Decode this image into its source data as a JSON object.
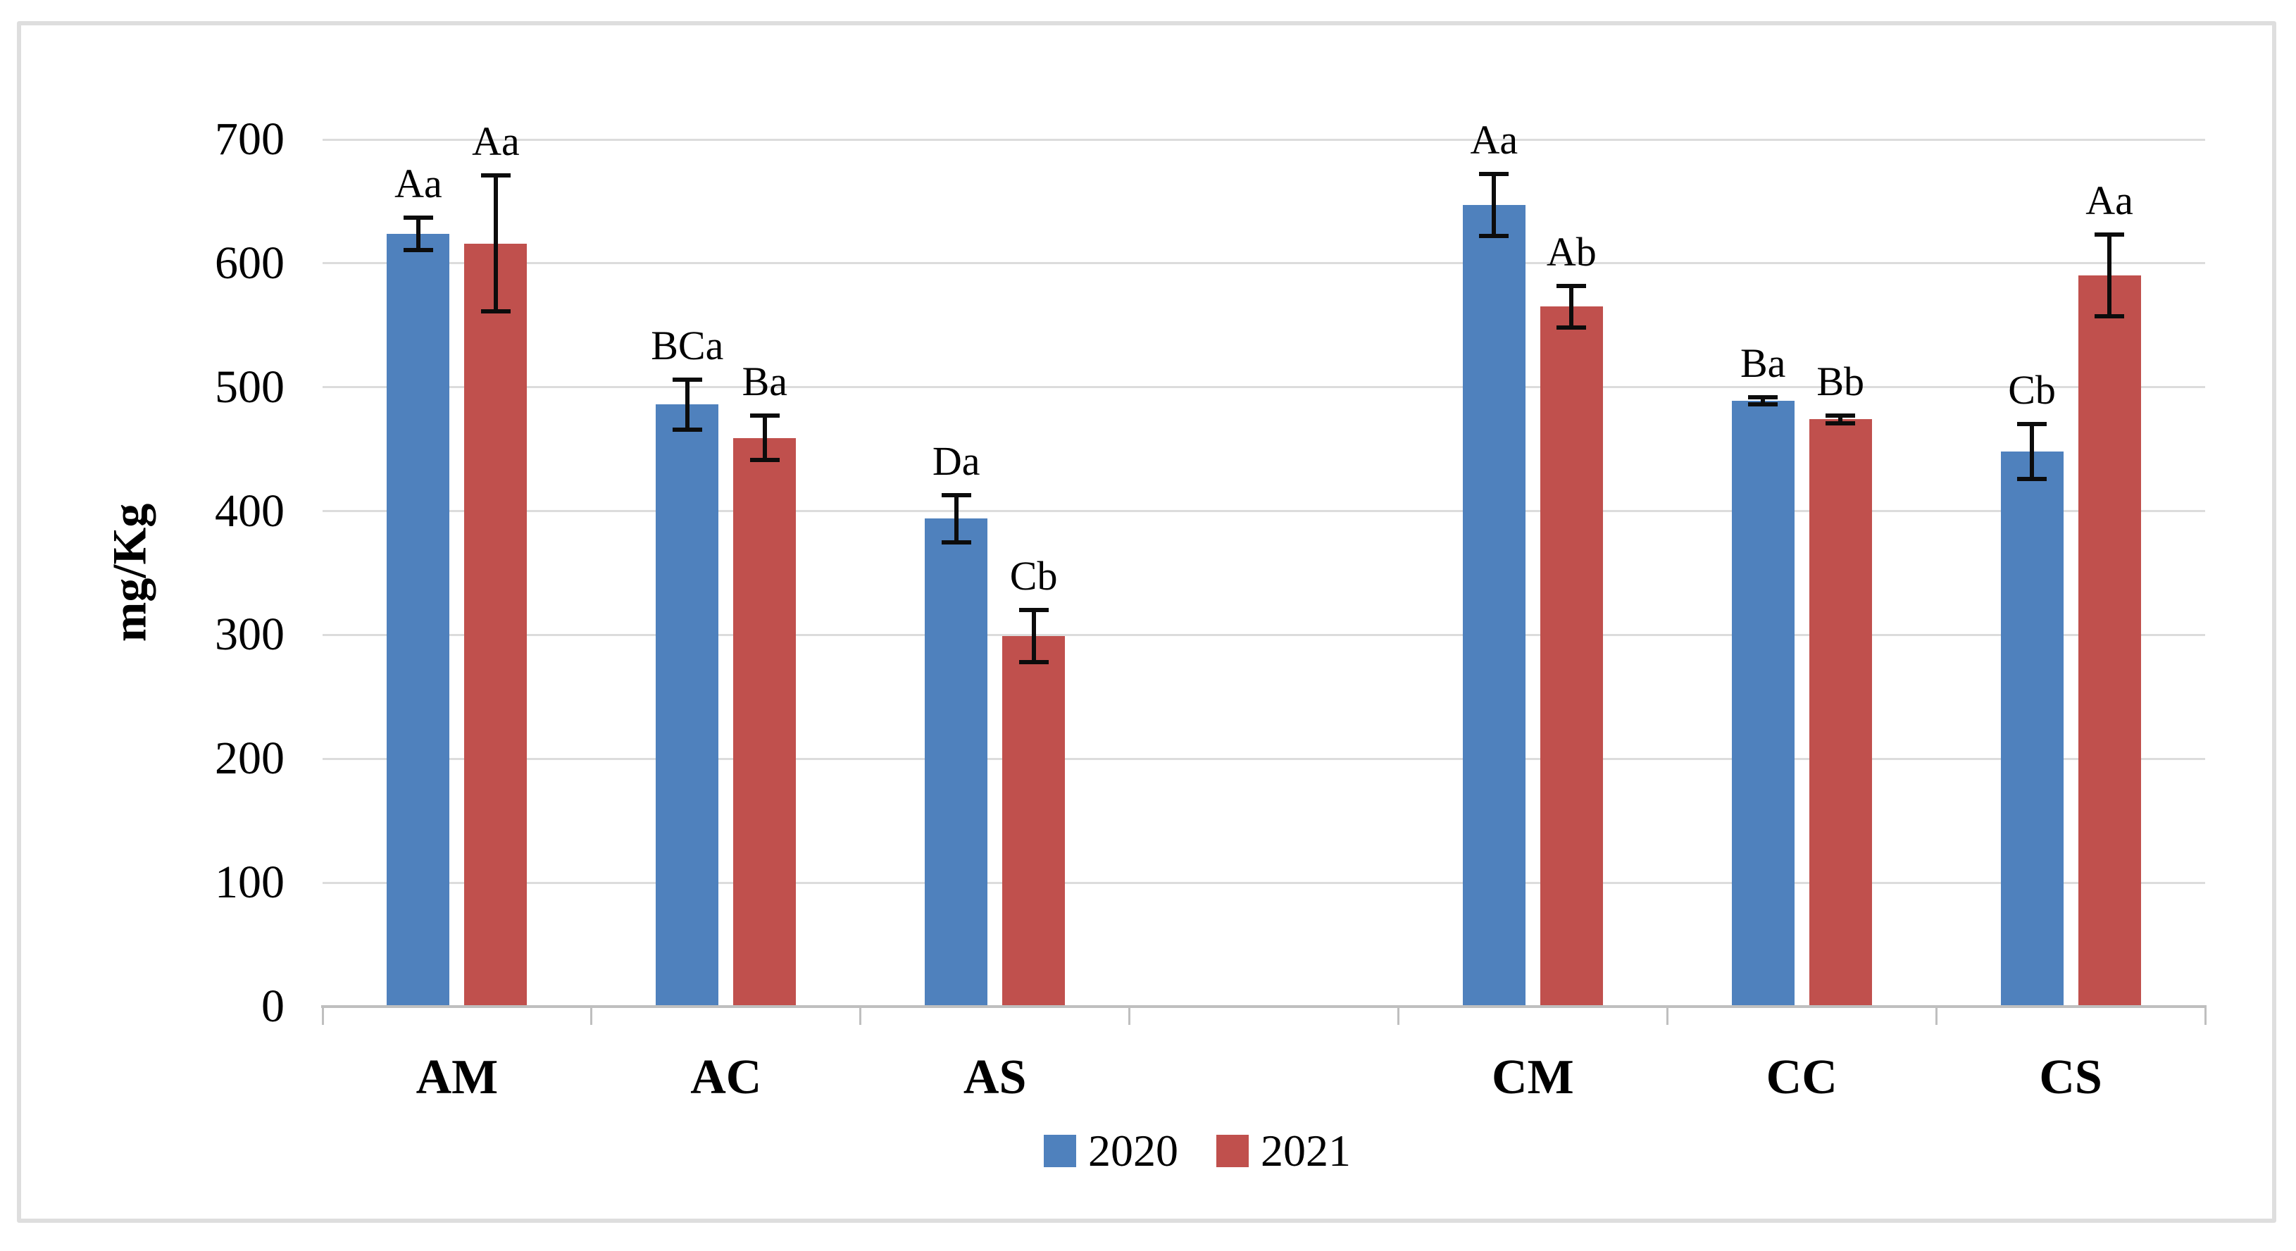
{
  "chart_data": {
    "type": "bar",
    "title": "",
    "ylabel": "mg/Kg",
    "xlabel": "",
    "ylim": [
      0,
      700
    ],
    "yticks": [
      0,
      100,
      200,
      300,
      400,
      500,
      600,
      700
    ],
    "grid": true,
    "legend_position": "bottom-center",
    "slots": 7,
    "series": [
      {
        "name": "2020",
        "color": "#4F81BD"
      },
      {
        "name": "2021",
        "color": "#C0504D"
      }
    ],
    "groups": [
      {
        "label": "AM",
        "slot": 0,
        "bars": [
          {
            "series": "2020",
            "value": 624,
            "error": 13,
            "annotation": "Aa"
          },
          {
            "series": "2021",
            "value": 616,
            "error": 55,
            "annotation": "Aa"
          }
        ]
      },
      {
        "label": "AC",
        "slot": 1,
        "bars": [
          {
            "series": "2020",
            "value": 486,
            "error": 20,
            "annotation": "BCa"
          },
          {
            "series": "2021",
            "value": 459,
            "error": 18,
            "annotation": "Ba"
          }
        ]
      },
      {
        "label": "AS",
        "slot": 2,
        "bars": [
          {
            "series": "2020",
            "value": 394,
            "error": 19,
            "annotation": "Da"
          },
          {
            "series": "2021",
            "value": 299,
            "error": 21,
            "annotation": "Cb"
          }
        ]
      },
      {
        "label": "CM",
        "slot": 4,
        "bars": [
          {
            "series": "2020",
            "value": 647,
            "error": 25,
            "annotation": "Aa"
          },
          {
            "series": "2021",
            "value": 565,
            "error": 17,
            "annotation": "Ab"
          }
        ]
      },
      {
        "label": "CC",
        "slot": 5,
        "bars": [
          {
            "series": "2020",
            "value": 489,
            "error": 3,
            "annotation": "Ba"
          },
          {
            "series": "2021",
            "value": 474,
            "error": 3,
            "annotation": "Bb"
          }
        ]
      },
      {
        "label": "CS",
        "slot": 6,
        "bars": [
          {
            "series": "2020",
            "value": 448,
            "error": 22,
            "annotation": "Cb"
          },
          {
            "series": "2021",
            "value": 590,
            "error": 33,
            "annotation": "Aa"
          }
        ]
      }
    ]
  },
  "colors": {
    "background": "#ffffff",
    "figure_border": "#dedede",
    "gridline": "#dcdcdc",
    "axis_line": "#bfbfbf",
    "tick": "#bfbfbf",
    "error_bar": "#0c0c0c",
    "text": "#000000"
  }
}
